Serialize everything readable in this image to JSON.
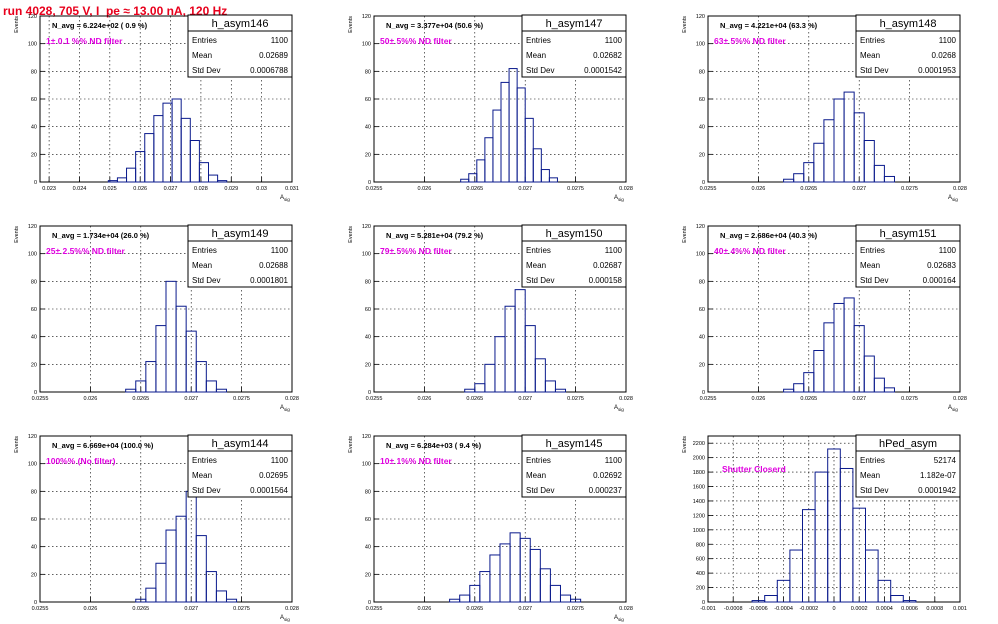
{
  "run_title": "run 4028,   705 V, I_pe ≈ 13.00 nA, 120 Hz",
  "stats_labels": {
    "entries": "Entries",
    "mean": "Mean",
    "std": "Std Dev"
  },
  "chart_data": [
    {
      "type": "bar",
      "name": "h_asym146",
      "navg": "N_avg = 6.224e+02 ( 0.9 %)",
      "filter": "1± 0.1 %% ND filter",
      "entries": "1100",
      "mean": "0.02689",
      "std": "0.0006788",
      "ylabel": "Events",
      "xlabel": "A_{sig}",
      "ylim": [
        0,
        120
      ],
      "yticks": [
        0,
        20,
        40,
        60,
        80,
        100,
        120
      ],
      "xlim": [
        0.0227,
        0.031
      ],
      "xticks": [
        0.023,
        0.024,
        0.025,
        0.026,
        0.027,
        0.028,
        0.029,
        0.03,
        0.031
      ],
      "xticklabels": [
        "0.023",
        "0.024",
        "0.025",
        "0.026",
        "0.027",
        "0.028",
        "0.029",
        "0.03",
        "0.031"
      ],
      "grid": true,
      "x": [
        0.0251,
        0.0254,
        0.0257,
        0.026,
        0.0263,
        0.0266,
        0.0269,
        0.0272,
        0.0275,
        0.0278,
        0.0281,
        0.0284,
        0.0287
      ],
      "values": [
        1,
        3,
        10,
        22,
        35,
        48,
        57,
        60,
        46,
        30,
        14,
        5,
        1
      ]
    },
    {
      "type": "bar",
      "name": "h_asym147",
      "navg": "N_avg = 3.377e+04 (50.6 %)",
      "filter": "50± 5%% ND filter",
      "entries": "1100",
      "mean": "0.02682",
      "std": "0.0001542",
      "ylabel": "Events",
      "xlabel": "A_{sig}",
      "ylim": [
        0,
        120
      ],
      "yticks": [
        0,
        20,
        40,
        60,
        80,
        100,
        120
      ],
      "xlim": [
        0.0255,
        0.028
      ],
      "xticks": [
        0.0255,
        0.026,
        0.0265,
        0.027,
        0.0275,
        0.028
      ],
      "xticklabels": [
        "0.0255",
        "0.026",
        "0.0265",
        "0.027",
        "0.0275",
        "0.028"
      ],
      "grid": true,
      "x": [
        0.0264,
        0.02648,
        0.02656,
        0.02664,
        0.02672,
        0.0268,
        0.02688,
        0.02696,
        0.02704,
        0.02712,
        0.0272,
        0.02728
      ],
      "values": [
        2,
        6,
        16,
        32,
        52,
        72,
        82,
        68,
        46,
        24,
        9,
        3
      ]
    },
    {
      "type": "bar",
      "name": "h_asym148",
      "navg": "N_avg = 4.221e+04 (63.3 %)",
      "filter": "63± 5%% ND filter",
      "entries": "1100",
      "mean": "0.0268",
      "std": "0.0001953",
      "ylabel": "Events",
      "xlabel": "A_{sig}",
      "ylim": [
        0,
        120
      ],
      "yticks": [
        0,
        20,
        40,
        60,
        80,
        100,
        120
      ],
      "xlim": [
        0.0255,
        0.028
      ],
      "xticks": [
        0.0255,
        0.026,
        0.0265,
        0.027,
        0.0275,
        0.028
      ],
      "xticklabels": [
        "0.0255",
        "0.026",
        "0.0265",
        "0.027",
        "0.0275",
        "0.028"
      ],
      "grid": true,
      "x": [
        0.0263,
        0.0264,
        0.0265,
        0.0266,
        0.0267,
        0.0268,
        0.0269,
        0.027,
        0.0271,
        0.0272,
        0.0273
      ],
      "values": [
        2,
        6,
        14,
        28,
        45,
        60,
        65,
        50,
        30,
        12,
        4
      ]
    },
    {
      "type": "bar",
      "name": "h_asym149",
      "navg": "N_avg = 1.734e+04 (26.0 %)",
      "filter": "25± 2.5%% ND filter",
      "entries": "1100",
      "mean": "0.02688",
      "std": "0.0001801",
      "ylabel": "Events",
      "xlabel": "A_{sig}",
      "ylim": [
        0,
        120
      ],
      "yticks": [
        0,
        20,
        40,
        60,
        80,
        100,
        120
      ],
      "xlim": [
        0.0255,
        0.028
      ],
      "xticks": [
        0.0255,
        0.026,
        0.0265,
        0.027,
        0.0275,
        0.028
      ],
      "xticklabels": [
        "0.0255",
        "0.026",
        "0.0265",
        "0.027",
        "0.0275",
        "0.028"
      ],
      "grid": true,
      "x": [
        0.0264,
        0.0265,
        0.0266,
        0.0267,
        0.0268,
        0.0269,
        0.027,
        0.0271,
        0.0272,
        0.0273
      ],
      "values": [
        2,
        8,
        22,
        48,
        80,
        62,
        44,
        22,
        8,
        2
      ]
    },
    {
      "type": "bar",
      "name": "h_asym150",
      "navg": "N_avg = 5.281e+04 (79.2 %)",
      "filter": "79± 5%% ND filter",
      "entries": "1100",
      "mean": "0.02687",
      "std": "0.000158",
      "ylabel": "Events",
      "xlabel": "A_{sig}",
      "ylim": [
        0,
        120
      ],
      "yticks": [
        0,
        20,
        40,
        60,
        80,
        100,
        120
      ],
      "xlim": [
        0.0255,
        0.028
      ],
      "xticks": [
        0.0255,
        0.026,
        0.0265,
        0.027,
        0.0275,
        0.028
      ],
      "xticklabels": [
        "0.0255",
        "0.026",
        "0.0265",
        "0.027",
        "0.0275",
        "0.028"
      ],
      "grid": true,
      "x": [
        0.02645,
        0.02655,
        0.02665,
        0.02675,
        0.02685,
        0.02695,
        0.02705,
        0.02715,
        0.02725,
        0.02735
      ],
      "values": [
        2,
        6,
        20,
        40,
        62,
        74,
        48,
        24,
        8,
        2
      ]
    },
    {
      "type": "bar",
      "name": "h_asym151",
      "navg": "N_avg = 2.686e+04 (40.3 %)",
      "filter": "40± 4%% ND filter",
      "entries": "1100",
      "mean": "0.02683",
      "std": "0.000164",
      "ylabel": "Events",
      "xlabel": "A_{sig}",
      "ylim": [
        0,
        120
      ],
      "yticks": [
        0,
        20,
        40,
        60,
        80,
        100,
        120
      ],
      "xlim": [
        0.0255,
        0.028
      ],
      "xticks": [
        0.0255,
        0.026,
        0.0265,
        0.027,
        0.0275,
        0.028
      ],
      "xticklabels": [
        "0.0255",
        "0.026",
        "0.0265",
        "0.027",
        "0.0275",
        "0.028"
      ],
      "grid": true,
      "x": [
        0.0263,
        0.0264,
        0.0265,
        0.0266,
        0.0267,
        0.0268,
        0.0269,
        0.027,
        0.0271,
        0.0272,
        0.0273
      ],
      "values": [
        2,
        6,
        14,
        30,
        50,
        64,
        68,
        48,
        26,
        10,
        3
      ]
    },
    {
      "type": "bar",
      "name": "h_asym144",
      "navg": "N_avg = 6.669e+04 (100.0 %)",
      "filter": "100%% (No filter)",
      "entries": "1100",
      "mean": "0.02695",
      "std": "0.0001564",
      "ylabel": "Events",
      "xlabel": "A_{sig}",
      "ylim": [
        0,
        120
      ],
      "yticks": [
        0,
        20,
        40,
        60,
        80,
        100,
        120
      ],
      "xlim": [
        0.0255,
        0.028
      ],
      "xticks": [
        0.0255,
        0.026,
        0.0265,
        0.027,
        0.0275,
        0.028
      ],
      "xticklabels": [
        "0.0255",
        "0.026",
        "0.0265",
        "0.027",
        "0.0275",
        "0.028"
      ],
      "grid": true,
      "x": [
        0.0265,
        0.0266,
        0.0267,
        0.0268,
        0.0269,
        0.027,
        0.0271,
        0.0272,
        0.0273,
        0.0274
      ],
      "values": [
        2,
        10,
        28,
        52,
        62,
        80,
        48,
        22,
        8,
        2
      ]
    },
    {
      "type": "bar",
      "name": "h_asym145",
      "navg": "N_avg = 6.284e+03 ( 9.4 %)",
      "filter": "10± 1%% ND filter",
      "entries": "1100",
      "mean": "0.02692",
      "std": "0.000237",
      "ylabel": "Events",
      "xlabel": "A_{sig}",
      "ylim": [
        0,
        120
      ],
      "yticks": [
        0,
        20,
        40,
        60,
        80,
        100,
        120
      ],
      "xlim": [
        0.0255,
        0.028
      ],
      "xticks": [
        0.0255,
        0.026,
        0.0265,
        0.027,
        0.0275,
        0.028
      ],
      "xticklabels": [
        "0.0255",
        "0.026",
        "0.0265",
        "0.027",
        "0.0275",
        "0.028"
      ],
      "grid": true,
      "x": [
        0.0263,
        0.0264,
        0.0265,
        0.0266,
        0.0267,
        0.0268,
        0.0269,
        0.027,
        0.0271,
        0.0272,
        0.0273,
        0.0274,
        0.0275
      ],
      "values": [
        2,
        5,
        12,
        22,
        34,
        42,
        50,
        46,
        38,
        24,
        12,
        5,
        2
      ]
    },
    {
      "type": "bar",
      "name": "hPed_asym",
      "navg": "",
      "filter": "Shutter Closerd",
      "entries": "52174",
      "mean": "1.182e-07",
      "std": "0.0001942",
      "ylabel": "Events",
      "xlabel": "",
      "ylim": [
        0,
        2300
      ],
      "yticks": [
        0,
        200,
        400,
        600,
        800,
        1000,
        1200,
        1400,
        1600,
        1800,
        2000,
        2200
      ],
      "xlim": [
        -0.001,
        0.001
      ],
      "xticks": [
        -0.001,
        -0.0008,
        -0.0006,
        -0.0004,
        -0.0002,
        0,
        0.0002,
        0.0004,
        0.0006,
        0.0008,
        0.001
      ],
      "xticklabels": [
        "-0.001",
        "-0.0008",
        "-0.0006",
        "-0.0004",
        "-0.0002",
        "0",
        "0.0002",
        "0.0004",
        "0.0006",
        "0.0008",
        "0.001"
      ],
      "grid": true,
      "x": [
        -0.0006,
        -0.0005,
        -0.0004,
        -0.0003,
        -0.0002,
        -0.0001,
        0,
        0.0001,
        0.0002,
        0.0003,
        0.0004,
        0.0005,
        0.0006
      ],
      "values": [
        20,
        90,
        300,
        720,
        1280,
        1800,
        2120,
        1850,
        1300,
        720,
        300,
        90,
        20
      ]
    }
  ]
}
